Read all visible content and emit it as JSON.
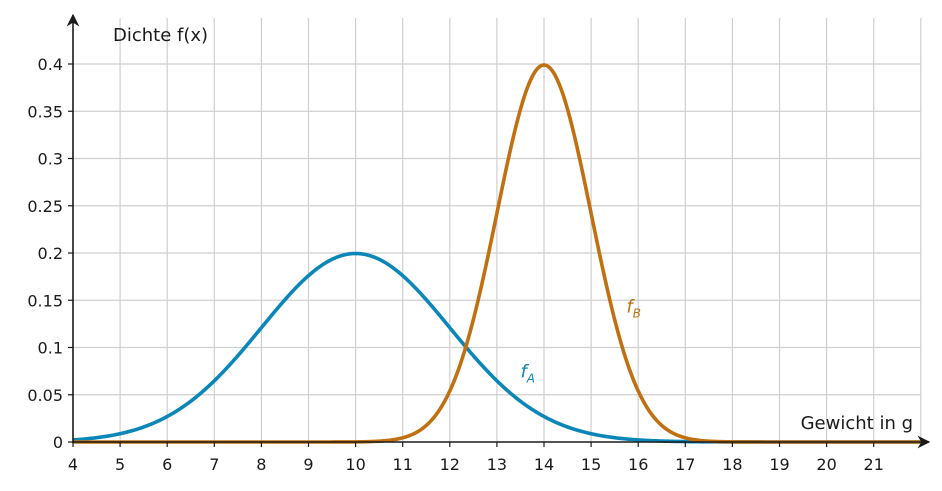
{
  "chart_data": {
    "type": "line",
    "xlabel": "Gewicht in g",
    "ylabel": "Dichte f(x)",
    "xlim": [
      4,
      22
    ],
    "ylim": [
      0,
      0.43
    ],
    "xticks": [
      4,
      5,
      6,
      7,
      8,
      9,
      10,
      11,
      12,
      13,
      14,
      15,
      16,
      17,
      18,
      19,
      20,
      21
    ],
    "yticks": [
      0,
      0.05,
      0.1,
      0.15,
      0.2,
      0.25,
      0.3,
      0.35,
      0.4
    ],
    "ytick_labels": [
      "0",
      "0.05",
      "0.1",
      "0.15",
      "0.2",
      "0.25",
      "0.3",
      "0.35",
      "0.4"
    ],
    "grid": true,
    "series": [
      {
        "name": "f_A",
        "label_main": "f",
        "label_sub": "A",
        "color": "#0a87b8",
        "distribution": "normal",
        "mu": 10,
        "sigma": 2,
        "label_at": [
          13.5,
          0.068
        ]
      },
      {
        "name": "f_B",
        "label_main": "f",
        "label_sub": "B",
        "color": "#c07010",
        "distribution": "normal",
        "mu": 14,
        "sigma": 1,
        "label_at": [
          15.75,
          0.137
        ]
      }
    ]
  }
}
